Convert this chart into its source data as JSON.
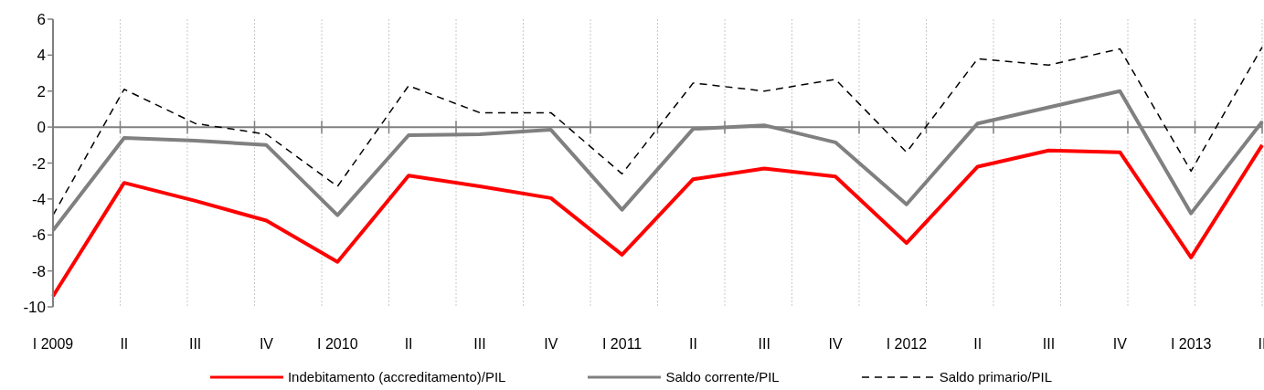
{
  "chart_data": {
    "type": "line",
    "categories": [
      "I 2009",
      "II",
      "III",
      "IV",
      "I 2010",
      "II",
      "III",
      "IV",
      "I 2011",
      "II",
      "III",
      "IV",
      "I 2012",
      "II",
      "III",
      "IV",
      "I 2013",
      "II"
    ],
    "series": [
      {
        "name": "Indebitamento (accreditamento)/PIL",
        "color": "#ff0000",
        "line_style": "solid",
        "values": [
          -9.4,
          -3.1,
          -4.1,
          -5.2,
          -7.5,
          -2.7,
          -3.3,
          -3.95,
          -7.1,
          -2.9,
          -2.3,
          -2.75,
          -6.45,
          -2.2,
          -1.3,
          -1.4,
          -7.25,
          -1.0
        ]
      },
      {
        "name": "Saldo corrente/PIL",
        "color": "#808080",
        "line_style": "solid",
        "values": [
          -5.75,
          -0.6,
          -0.75,
          -1.0,
          -4.9,
          -0.45,
          -0.4,
          -0.15,
          -4.6,
          -0.1,
          0.1,
          -0.85,
          -4.3,
          0.2,
          1.1,
          2.0,
          -4.8,
          0.3
        ]
      },
      {
        "name": "Saldo primario/PIL",
        "color": "#000000",
        "line_style": "dashed",
        "values": [
          -4.9,
          2.1,
          0.2,
          -0.4,
          -3.3,
          2.3,
          0.8,
          0.8,
          -2.6,
          2.45,
          2.0,
          2.65,
          -1.4,
          3.8,
          3.45,
          4.35,
          -2.45,
          4.45
        ]
      }
    ],
    "ylim": [
      -10,
      6
    ],
    "yticks": [
      -10,
      -8,
      -6,
      -4,
      -2,
      0,
      2,
      4,
      6
    ],
    "ref_lines": [
      {
        "axis": "y",
        "value": 0,
        "color": "#808080"
      }
    ],
    "grid": true,
    "legend": "bottom"
  }
}
